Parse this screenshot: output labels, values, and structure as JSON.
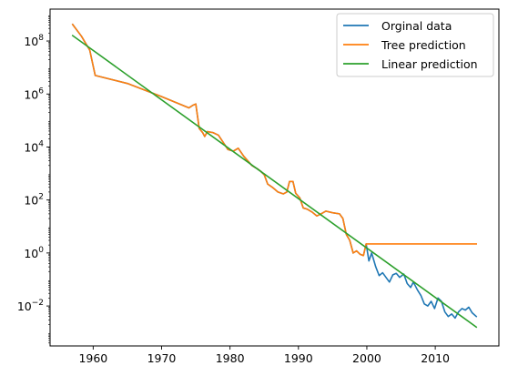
{
  "chart_data": {
    "type": "line",
    "title": "",
    "xlabel": "",
    "ylabel": "",
    "y_scale": "log",
    "xlim": [
      1953.7,
      2019.3
    ],
    "ylim": [
      0.00031,
      1600000000.0
    ],
    "grid": false,
    "legend_position": "top-right",
    "x_ticks": [
      1960,
      1970,
      1980,
      1990,
      2000,
      2010
    ],
    "x_tick_labels": [
      "1960",
      "1970",
      "1980",
      "1990",
      "2000",
      "2010"
    ],
    "y_ticks": [
      0.01,
      1,
      100,
      10000,
      1000000,
      100000000
    ],
    "y_tick_labels": [
      {
        "base": "10",
        "exp": "−2"
      },
      {
        "base": "10",
        "exp": "0"
      },
      {
        "base": "10",
        "exp": "2"
      },
      {
        "base": "10",
        "exp": "4"
      },
      {
        "base": "10",
        "exp": "6"
      },
      {
        "base": "10",
        "exp": "8"
      }
    ],
    "series": [
      {
        "name": "Orginal data",
        "color": "#1f77b4",
        "points": [
          [
            1957.0,
            420000000.0
          ],
          [
            1958.3,
            150000000.0
          ],
          [
            1959.5,
            45000000.0
          ],
          [
            1960.3,
            5000000.0
          ],
          [
            1965.0,
            2500000.0
          ],
          [
            1970.0,
            800000.0
          ],
          [
            1974.0,
            300000.0
          ],
          [
            1974.6,
            380000.0
          ],
          [
            1975.0,
            420000.0
          ],
          [
            1975.5,
            50000.0
          ],
          [
            1976.0,
            35000.0
          ],
          [
            1976.3,
            25000.0
          ],
          [
            1976.7,
            38000.0
          ],
          [
            1977.5,
            35000.0
          ],
          [
            1978.3,
            28000.0
          ],
          [
            1979.0,
            15000.0
          ],
          [
            1979.7,
            8000.0
          ],
          [
            1980.5,
            7000.0
          ],
          [
            1981.2,
            9000.0
          ],
          [
            1982.0,
            4500.0
          ],
          [
            1982.6,
            3000.0
          ],
          [
            1983.2,
            2000.0
          ],
          [
            1984.0,
            1500.0
          ],
          [
            1984.5,
            1200.0
          ],
          [
            1985.0,
            900.0
          ],
          [
            1985.5,
            400.0
          ],
          [
            1986.2,
            300.0
          ],
          [
            1987.0,
            200.0
          ],
          [
            1987.8,
            170.0
          ],
          [
            1988.3,
            200.0
          ],
          [
            1988.7,
            500.0
          ],
          [
            1989.2,
            500.0
          ],
          [
            1989.6,
            180.0
          ],
          [
            1990.2,
            120.0
          ],
          [
            1990.7,
            50.0
          ],
          [
            1991.3,
            45.0
          ],
          [
            1992.0,
            35.0
          ],
          [
            1992.7,
            25.0
          ],
          [
            1993.3,
            30.0
          ],
          [
            1994.0,
            38.0
          ],
          [
            1995.0,
            33.0
          ],
          [
            1996.0,
            30.0
          ],
          [
            1996.5,
            20.0
          ],
          [
            1997.0,
            5.0
          ],
          [
            1997.5,
            3.0
          ],
          [
            1998.0,
            1.0
          ],
          [
            1998.5,
            1.2
          ],
          [
            1999.0,
            0.9
          ],
          [
            1999.5,
            0.8
          ],
          [
            1999.9,
            2.2
          ],
          [
            2000.3,
            0.5
          ],
          [
            2000.7,
            1.0
          ],
          [
            2001.3,
            0.3
          ],
          [
            2001.8,
            0.14
          ],
          [
            2002.3,
            0.18
          ],
          [
            2002.8,
            0.12
          ],
          [
            2003.3,
            0.08
          ],
          [
            2003.8,
            0.15
          ],
          [
            2004.3,
            0.17
          ],
          [
            2004.8,
            0.12
          ],
          [
            2005.4,
            0.16
          ],
          [
            2005.9,
            0.07
          ],
          [
            2006.4,
            0.05
          ],
          [
            2006.8,
            0.08
          ],
          [
            2007.4,
            0.04
          ],
          [
            2007.9,
            0.025
          ],
          [
            2008.4,
            0.012
          ],
          [
            2008.9,
            0.01
          ],
          [
            2009.4,
            0.015
          ],
          [
            2009.9,
            0.008
          ],
          [
            2010.4,
            0.02
          ],
          [
            2010.9,
            0.015
          ],
          [
            2011.4,
            0.006
          ],
          [
            2011.9,
            0.004
          ],
          [
            2012.4,
            0.005
          ],
          [
            2012.9,
            0.0035
          ],
          [
            2013.4,
            0.006
          ],
          [
            2013.9,
            0.008
          ],
          [
            2014.4,
            0.007
          ],
          [
            2014.9,
            0.009
          ],
          [
            2015.4,
            0.0055
          ],
          [
            2016.0,
            0.004
          ]
        ]
      },
      {
        "name": "Tree prediction",
        "color": "#ff7f0e",
        "points": [
          [
            1957.0,
            420000000.0
          ],
          [
            1958.3,
            150000000.0
          ],
          [
            1959.5,
            45000000.0
          ],
          [
            1960.3,
            5000000.0
          ],
          [
            1965.0,
            2500000.0
          ],
          [
            1970.0,
            800000.0
          ],
          [
            1974.0,
            300000.0
          ],
          [
            1974.6,
            380000.0
          ],
          [
            1975.0,
            420000.0
          ],
          [
            1975.5,
            50000.0
          ],
          [
            1976.0,
            35000.0
          ],
          [
            1976.3,
            25000.0
          ],
          [
            1976.7,
            38000.0
          ],
          [
            1977.5,
            35000.0
          ],
          [
            1978.3,
            28000.0
          ],
          [
            1979.0,
            15000.0
          ],
          [
            1979.7,
            8000.0
          ],
          [
            1980.5,
            7000.0
          ],
          [
            1981.2,
            9000.0
          ],
          [
            1982.0,
            4500.0
          ],
          [
            1982.6,
            3000.0
          ],
          [
            1983.2,
            2000.0
          ],
          [
            1984.0,
            1500.0
          ],
          [
            1984.5,
            1200.0
          ],
          [
            1985.0,
            900.0
          ],
          [
            1985.5,
            400.0
          ],
          [
            1986.2,
            300.0
          ],
          [
            1987.0,
            200.0
          ],
          [
            1987.8,
            170.0
          ],
          [
            1988.3,
            200.0
          ],
          [
            1988.7,
            500.0
          ],
          [
            1989.2,
            500.0
          ],
          [
            1989.6,
            180.0
          ],
          [
            1990.2,
            120.0
          ],
          [
            1990.7,
            50.0
          ],
          [
            1991.3,
            45.0
          ],
          [
            1992.0,
            35.0
          ],
          [
            1992.7,
            25.0
          ],
          [
            1993.3,
            30.0
          ],
          [
            1994.0,
            38.0
          ],
          [
            1995.0,
            33.0
          ],
          [
            1996.0,
            30.0
          ],
          [
            1996.5,
            20.0
          ],
          [
            1997.0,
            5.0
          ],
          [
            1997.5,
            3.0
          ],
          [
            1998.0,
            1.0
          ],
          [
            1998.5,
            1.2
          ],
          [
            1999.0,
            0.9
          ],
          [
            1999.5,
            0.8
          ],
          [
            1999.9,
            2.2
          ],
          [
            2016.0,
            2.2
          ]
        ]
      },
      {
        "name": "Linear prediction",
        "color": "#2ca02c",
        "points": [
          [
            1957.0,
            160000000.0
          ],
          [
            2016.0,
            0.0016
          ]
        ]
      }
    ]
  }
}
